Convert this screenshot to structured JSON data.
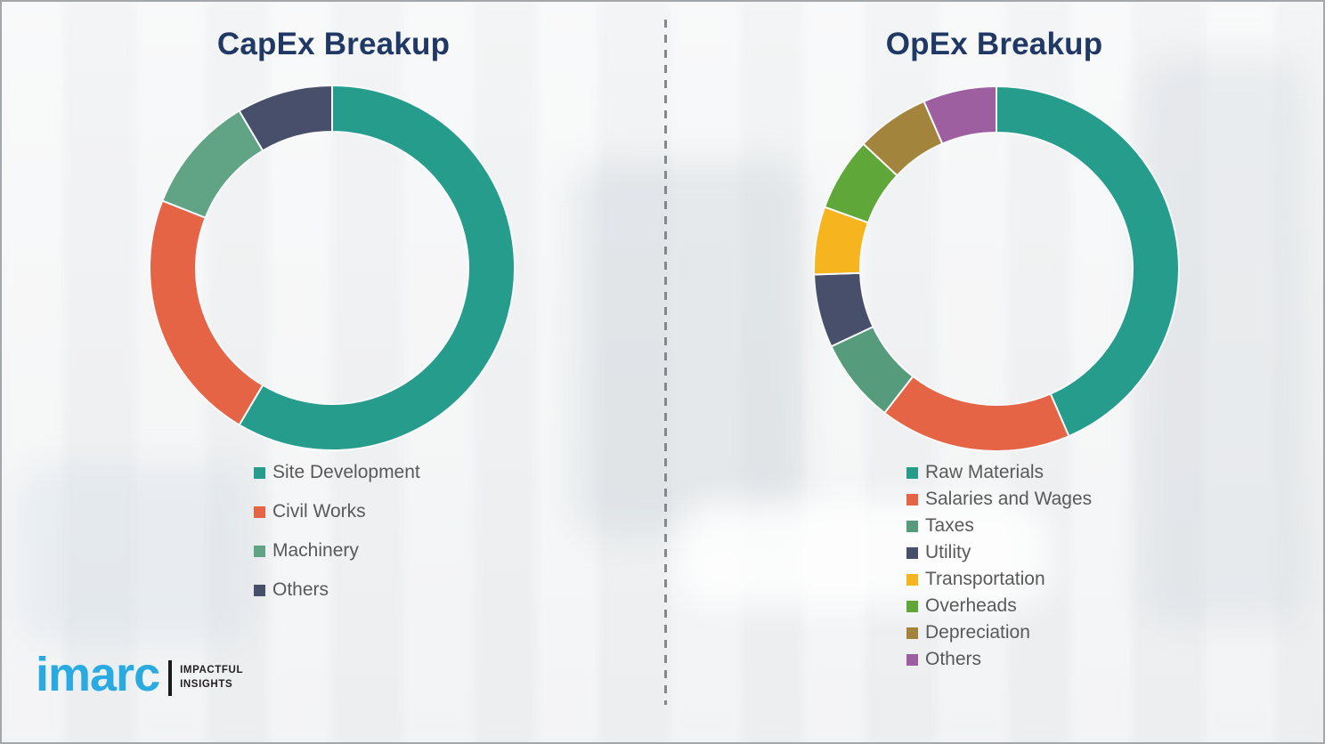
{
  "styles": {
    "title_color": "#1f3864",
    "legend_text_color": "#595959",
    "divider_color": "#83888d",
    "page_background": "#f2f3f4",
    "segment_gap_color": "#f8f9fa"
  },
  "chart_data": [
    {
      "type": "pie",
      "subtype": "donut",
      "title": "CapEx Breakup",
      "legend_position": "below-left",
      "start_angle_deg": 0,
      "direction": "clockwise",
      "segments": [
        {
          "label": "Site Development",
          "value": 58.5,
          "color": "#269c8d"
        },
        {
          "label": "Civil Works",
          "value": 22.5,
          "color": "#e66446"
        },
        {
          "label": "Machinery",
          "value": 10.5,
          "color": "#61a385"
        },
        {
          "label": "Others",
          "value": 8.5,
          "color": "#474f6b"
        }
      ]
    },
    {
      "type": "pie",
      "subtype": "donut",
      "title": "OpEx Breakup",
      "legend_position": "below-left",
      "start_angle_deg": 0,
      "direction": "clockwise",
      "segments": [
        {
          "label": "Raw Materials",
          "value": 43.5,
          "color": "#269c8d"
        },
        {
          "label": "Salaries and Wages",
          "value": 17,
          "color": "#e66446"
        },
        {
          "label": "Taxes",
          "value": 7.5,
          "color": "#569c7c"
        },
        {
          "label": "Utility",
          "value": 6.5,
          "color": "#474f6b"
        },
        {
          "label": "Transportation",
          "value": 6,
          "color": "#f6b51e"
        },
        {
          "label": "Overheads",
          "value": 6.5,
          "color": "#60a73a"
        },
        {
          "label": "Depreciation",
          "value": 6.5,
          "color": "#a3843c"
        },
        {
          "label": "Others",
          "value": 6.5,
          "color": "#9d5fa0"
        }
      ]
    }
  ],
  "logo": {
    "brand": "imarc",
    "tagline_line1": "IMPACTFUL",
    "tagline_line2": "INSIGHTS",
    "brand_color": "#29abe2",
    "bar_color": "#1a1a1a",
    "tagline_color": "#231f20"
  }
}
